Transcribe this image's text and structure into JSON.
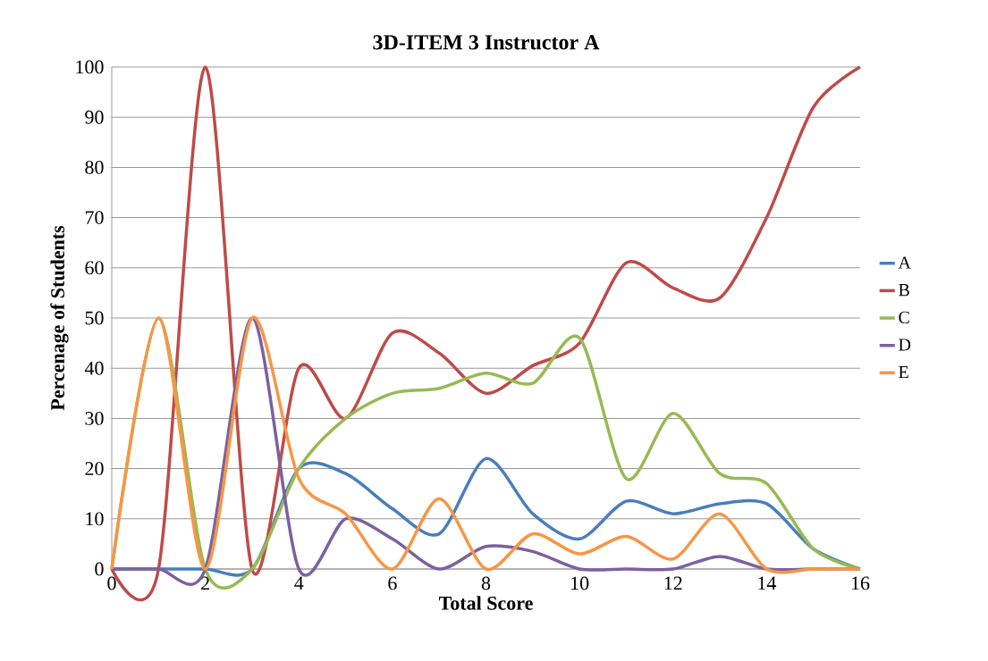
{
  "chart_data": {
    "type": "line",
    "title": "3D-ITEM 3 Instructor A",
    "xlabel": "Total Score",
    "ylabel": "Percenage of Students",
    "x": [
      0,
      1,
      2,
      3,
      4,
      5,
      6,
      7,
      8,
      9,
      10,
      11,
      12,
      13,
      14,
      15,
      16
    ],
    "xlim": [
      0,
      16
    ],
    "xticks": [
      0,
      2,
      4,
      6,
      8,
      10,
      12,
      14,
      16
    ],
    "ylim": [
      0,
      100
    ],
    "yticks": [
      0,
      10,
      20,
      30,
      40,
      50,
      60,
      70,
      80,
      90,
      100
    ],
    "grid": "y",
    "legend": "right",
    "marker": "none",
    "line_style": "solid",
    "series": [
      {
        "name": "A",
        "color": "#4a7ebb",
        "values": [
          0,
          0,
          0,
          0,
          20,
          19,
          12,
          7,
          22,
          11,
          6,
          13.5,
          11,
          13,
          13,
          4,
          0
        ]
      },
      {
        "name": "B",
        "color": "#be4b48",
        "values": [
          0,
          0,
          100,
          0,
          40,
          30,
          47,
          43,
          35,
          40.5,
          45,
          61,
          56,
          54,
          70,
          92,
          100
        ]
      },
      {
        "name": "C",
        "color": "#98b954",
        "values": [
          0,
          50,
          0,
          0,
          20,
          30,
          35,
          36,
          39,
          37,
          46,
          18,
          31,
          19,
          17,
          4,
          0
        ]
      },
      {
        "name": "D",
        "color": "#7d60a0",
        "values": [
          0,
          0,
          0,
          50,
          0,
          10,
          6,
          0,
          4.5,
          3.5,
          0,
          0,
          0,
          2.5,
          0,
          0,
          0
        ]
      },
      {
        "name": "E",
        "color": "#f79646",
        "values": [
          0,
          50,
          0,
          50,
          18,
          11,
          0,
          14,
          0,
          7,
          3,
          6.5,
          2,
          11,
          0,
          0,
          0
        ]
      }
    ]
  }
}
